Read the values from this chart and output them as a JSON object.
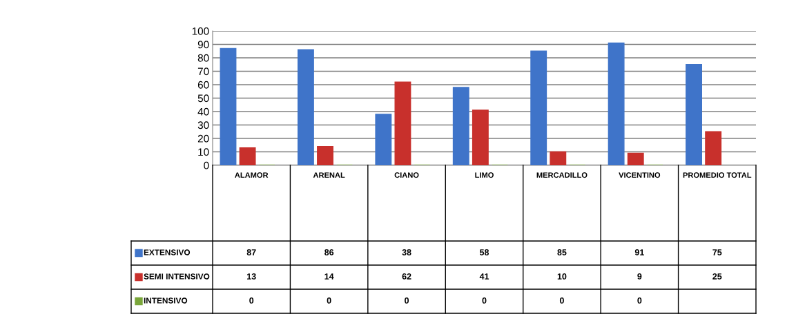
{
  "chart_data": {
    "type": "bar",
    "categories": [
      "ALAMOR",
      "ARENAL",
      "CIANO",
      "LIMO",
      "MERCADILLO",
      "VICENTINO",
      "PROMEDIO TOTAL"
    ],
    "series": [
      {
        "name": "EXTENSIVO",
        "color": "#3f74c9",
        "values": [
          87,
          86,
          38,
          58,
          85,
          91,
          75
        ]
      },
      {
        "name": "SEMI INTENSIVO",
        "color": "#c8302c",
        "values": [
          13,
          14,
          62,
          41,
          10,
          9,
          25
        ]
      },
      {
        "name": "INTENSIVO",
        "color": "#7aa63a",
        "values": [
          0,
          0,
          0,
          0,
          0,
          0,
          null
        ]
      }
    ],
    "ylim": [
      0,
      100
    ],
    "yticks": [
      0,
      10,
      20,
      30,
      40,
      50,
      60,
      70,
      80,
      90,
      100
    ],
    "grid": "y",
    "legend": "bottom",
    "data_labels": true
  }
}
